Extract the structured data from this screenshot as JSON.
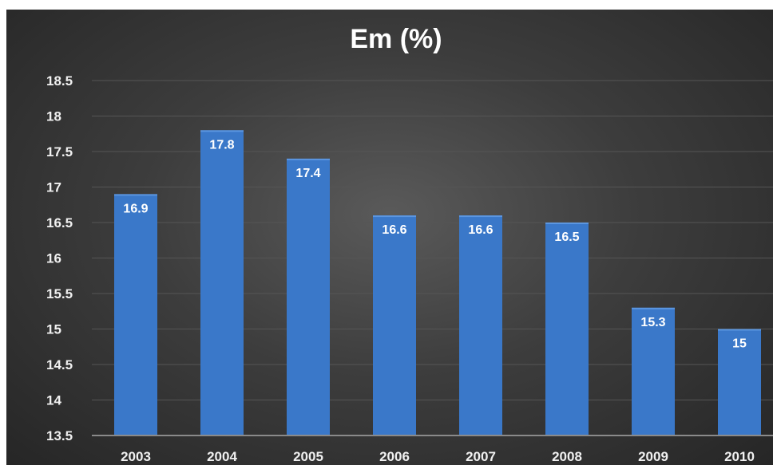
{
  "chart_data": {
    "type": "bar",
    "title": "Em (%)",
    "categories": [
      "2003",
      "2004",
      "2005",
      "2006",
      "2007",
      "2008",
      "2009",
      "2010"
    ],
    "values": [
      16.9,
      17.8,
      17.4,
      16.6,
      16.6,
      16.5,
      15.3,
      15
    ],
    "ylim": [
      13.5,
      18.5
    ],
    "yticks": [
      "13.5",
      "14",
      "14.5",
      "15",
      "15.5",
      "16",
      "16.5",
      "17",
      "17.5",
      "18",
      "18.5"
    ],
    "grid": true,
    "bar_color": "#3a78c9",
    "background_color": "#3d3d3d"
  }
}
